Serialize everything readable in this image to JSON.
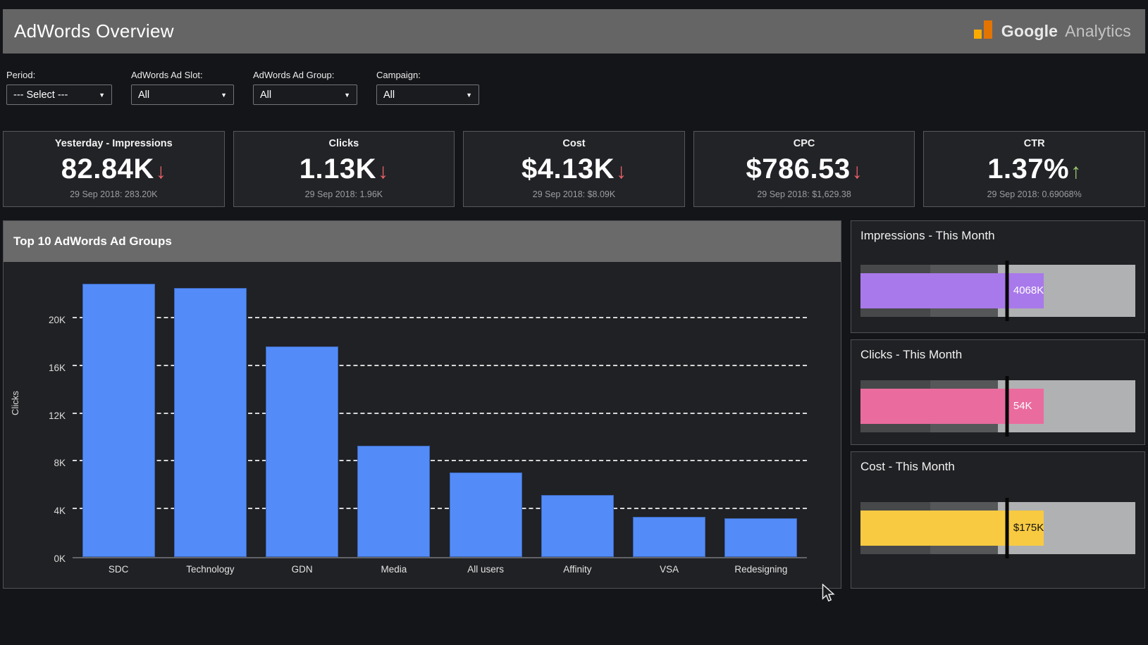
{
  "header": {
    "title": "AdWords Overview",
    "brand_primary": "Google",
    "brand_secondary": "Analytics"
  },
  "filters": {
    "period": {
      "label": "Period:",
      "value": "--- Select ---"
    },
    "ad_slot": {
      "label": "AdWords Ad Slot:",
      "value": "All"
    },
    "ad_group": {
      "label": "AdWords Ad Group:",
      "value": "All"
    },
    "campaign": {
      "label": "Campaign:",
      "value": "All"
    }
  },
  "kpis": [
    {
      "title": "Yesterday - Impressions",
      "value": "82.84K",
      "trend": "down",
      "footnote": "29 Sep 2018: 283.20K"
    },
    {
      "title": "Clicks",
      "value": "1.13K",
      "trend": "down",
      "footnote": "29 Sep 2018: 1.96K"
    },
    {
      "title": "Cost",
      "value": "$4.13K",
      "trend": "down",
      "footnote": "29 Sep 2018: $8.09K"
    },
    {
      "title": "CPC",
      "value": "$786.53",
      "trend": "down",
      "footnote": "29 Sep 2018: $1,629.38"
    },
    {
      "title": "CTR",
      "value": "1.37%",
      "trend": "up",
      "footnote": "29 Sep 2018: 0.69068%"
    }
  ],
  "chart_data": [
    {
      "type": "bar",
      "title": "Top 10 AdWords Ad Groups",
      "categories": [
        "SDC",
        "Technology",
        "GDN",
        "Media",
        "All users",
        "Affinity",
        "VSA",
        "Redesigning"
      ],
      "values": [
        22900,
        22550,
        17650,
        9300,
        7100,
        5200,
        3350,
        3250
      ],
      "xlabel": "",
      "ylabel": "Clicks",
      "ylim": [
        0,
        24840
      ],
      "yticks": [
        {
          "label": "0K",
          "value": 0
        },
        {
          "label": "4K",
          "value": 4000
        },
        {
          "label": "8K",
          "value": 8000
        },
        {
          "label": "12K",
          "value": 12000
        },
        {
          "label": "16K",
          "value": 16000
        },
        {
          "label": "20K",
          "value": 20000
        }
      ],
      "grid": "dashed-horizontal",
      "bar_color": "#538cf8",
      "legend": "none"
    },
    {
      "type": "bullet",
      "title": "Impressions - This Month",
      "value_label": "4068K",
      "value_pct": 66.6,
      "target_pct": 53.3,
      "band_pcts": [
        25.3,
        49.9,
        100
      ],
      "measure_color": "#a879ea",
      "label_color": "#ffffff"
    },
    {
      "type": "bullet",
      "title": "Clicks - This Month",
      "value_label": "54K",
      "value_pct": 66.6,
      "target_pct": 53.3,
      "band_pcts": [
        25.3,
        49.9,
        100
      ],
      "measure_color": "#ea6b9e",
      "label_color": "#ffffff"
    },
    {
      "type": "bullet",
      "title": "Cost - This Month",
      "value_label": "$175K",
      "value_pct": 66.6,
      "target_pct": 53.3,
      "band_pcts": [
        25.3,
        49.9,
        100
      ],
      "measure_color": "#f8ca42",
      "label_color": "#141414"
    }
  ],
  "bullet_band_colors": [
    "#47484a",
    "#565759",
    "#b0b1b3"
  ],
  "colors": {
    "trend_down": "#ed6168",
    "trend_up": "#9dc96f",
    "bar_blue": "#538cf8",
    "header_gray": "#656565",
    "panel_strip_gray": "#6a6a6a",
    "logo_orange_dark": "#e37400",
    "logo_orange_light": "#f9ab00"
  }
}
